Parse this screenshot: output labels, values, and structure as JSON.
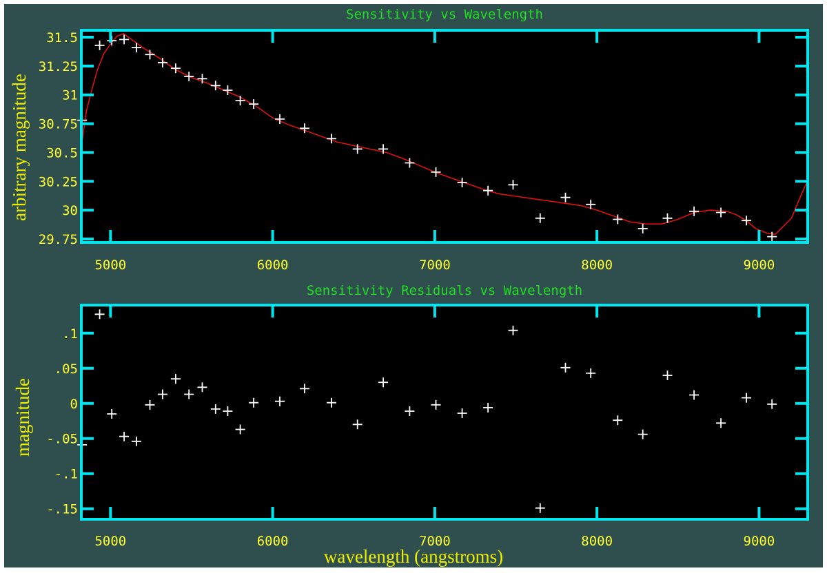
{
  "colors": {
    "frame": "#2f4f4f",
    "plot_bg": "#000000",
    "axis": "#00e5ee",
    "title": "#22dd22",
    "tick_text": "#ffff33",
    "label_text": "#eeee00",
    "points": "#ffffff",
    "fit_line": "#dd1111"
  },
  "chart_data": [
    {
      "type": "scatter",
      "title": "Sensitivity vs Wavelength",
      "xlabel": "",
      "ylabel": "arbitrary magnitude",
      "xlim": [
        4820,
        9300
      ],
      "ylim": [
        29.72,
        31.56
      ],
      "xticks": [
        5000,
        6000,
        7000,
        8000,
        9000
      ],
      "xtick_labels": [
        "5000",
        "6000",
        "7000",
        "8000",
        "9000"
      ],
      "yticks": [
        29.75,
        30.0,
        30.25,
        30.5,
        30.75,
        31.0,
        31.25,
        31.5
      ],
      "ytick_labels": [
        "29.75",
        "30",
        "30.25",
        "30.5",
        "30.75",
        "31",
        "31.25",
        "31.5"
      ],
      "grid": false,
      "series": [
        {
          "kind": "points",
          "x": [
            4825,
            4933,
            5008,
            5084,
            5160,
            5243,
            5321,
            5402,
            5484,
            5566,
            5648,
            5723,
            5800,
            5883,
            6044,
            6197,
            6363,
            6523,
            6682,
            6845,
            7007,
            7169,
            7328,
            7483,
            7650,
            7806,
            7962,
            8128,
            8283,
            8435,
            8599,
            8765,
            8922,
            9080
          ],
          "y": [
            30.78,
            31.43,
            31.47,
            31.48,
            31.41,
            31.35,
            31.28,
            31.23,
            31.16,
            31.14,
            31.08,
            31.04,
            30.95,
            30.92,
            30.79,
            30.71,
            30.62,
            30.53,
            30.53,
            30.41,
            30.33,
            30.24,
            30.17,
            30.22,
            29.93,
            30.11,
            30.05,
            29.92,
            29.84,
            29.93,
            29.99,
            29.98,
            29.91,
            29.77
          ]
        },
        {
          "kind": "line",
          "x": [
            4820,
            4850,
            4880,
            4920,
            4960,
            5000,
            5040,
            5080,
            5130,
            5200,
            5300,
            5400,
            5500,
            5600,
            5700,
            5800,
            5900,
            6000,
            6100,
            6200,
            6300,
            6400,
            6500,
            6600,
            6700,
            6800,
            6900,
            7000,
            7100,
            7200,
            7300,
            7400,
            7500,
            7600,
            7700,
            7800,
            7900,
            8000,
            8100,
            8200,
            8300,
            8400,
            8500,
            8600,
            8700,
            8800,
            8860,
            8920,
            8980,
            9050,
            9100,
            9150,
            9200,
            9250,
            9300
          ],
          "y": [
            30.55,
            30.85,
            31.02,
            31.22,
            31.36,
            31.44,
            31.51,
            31.53,
            31.48,
            31.41,
            31.32,
            31.22,
            31.15,
            31.1,
            31.04,
            30.98,
            30.9,
            30.8,
            30.74,
            30.69,
            30.64,
            30.59,
            30.56,
            30.53,
            30.5,
            30.45,
            30.39,
            30.33,
            30.28,
            30.23,
            30.18,
            30.14,
            30.12,
            30.1,
            30.08,
            30.06,
            30.04,
            30.0,
            29.95,
            29.9,
            29.88,
            29.88,
            29.92,
            29.98,
            30.0,
            29.99,
            29.96,
            29.91,
            29.84,
            29.8,
            29.79,
            29.86,
            29.93,
            30.1,
            30.26
          ]
        }
      ]
    },
    {
      "type": "scatter",
      "title": "Sensitivity Residuals vs Wavelength",
      "xlabel": "wavelength (angstroms)",
      "ylabel": "magnitude",
      "xlim": [
        4820,
        9300
      ],
      "ylim": [
        -0.165,
        0.14
      ],
      "xticks": [
        5000,
        6000,
        7000,
        8000,
        9000
      ],
      "xtick_labels": [
        "5000",
        "6000",
        "7000",
        "8000",
        "9000"
      ],
      "yticks": [
        -0.15,
        -0.1,
        -0.05,
        0,
        0.05,
        0.1
      ],
      "ytick_labels": [
        "-.15",
        "-.1",
        "-.05",
        "0",
        ".05",
        ".1"
      ],
      "grid": false,
      "series": [
        {
          "kind": "points",
          "x": [
            4825,
            4933,
            5008,
            5084,
            5160,
            5243,
            5321,
            5402,
            5484,
            5566,
            5648,
            5723,
            5800,
            5883,
            6044,
            6197,
            6363,
            6523,
            6682,
            6845,
            7007,
            7169,
            7328,
            7483,
            7650,
            7806,
            7962,
            8128,
            8283,
            8435,
            8599,
            8765,
            8922,
            9080
          ],
          "y": [
            -0.059,
            0.127,
            -0.015,
            -0.047,
            -0.054,
            -0.002,
            0.013,
            0.035,
            0.013,
            0.023,
            -0.008,
            -0.011,
            -0.037,
            0.001,
            0.003,
            0.021,
            0.001,
            -0.03,
            0.03,
            -0.011,
            -0.002,
            -0.014,
            -0.006,
            0.104,
            -0.149,
            0.051,
            0.043,
            -0.024,
            -0.044,
            0.04,
            0.012,
            -0.028,
            0.008,
            -0.001
          ]
        }
      ]
    }
  ]
}
